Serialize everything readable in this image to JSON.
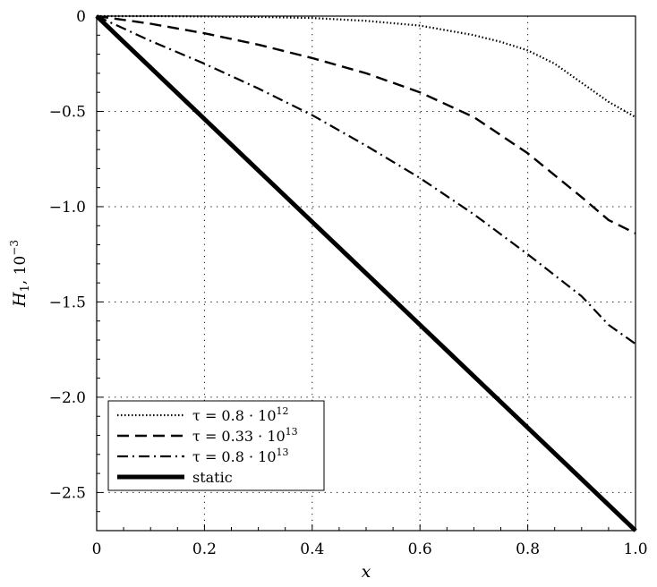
{
  "chart_data": {
    "type": "line",
    "xlabel": "x",
    "ylabel": "H_1, 10^-3",
    "ylabel_parts": {
      "sym": "H",
      "sub": "1",
      "rest": ", 10",
      "exp": "−3"
    },
    "xlim": [
      0,
      1.0
    ],
    "ylim": [
      -2.7,
      0
    ],
    "xticks": [
      0,
      0.2,
      0.4,
      0.6,
      0.8,
      1.0
    ],
    "xtick_labels": [
      "0",
      "0.2",
      "0.4",
      "0.6",
      "0.8",
      "1.0"
    ],
    "yticks": [
      0,
      -0.5,
      -1.0,
      -1.5,
      -2.0,
      -2.5
    ],
    "ytick_labels": [
      "0",
      "−0.5",
      "−1.0",
      "−1.5",
      "−2.0",
      "−2.5"
    ],
    "grid": true,
    "legend_position": "bottom-left",
    "series": [
      {
        "name": "τ = 0.8 · 10^12",
        "label_parts": {
          "pre": "τ = 0.8 · 10",
          "exp": "12"
        },
        "style": "dotted",
        "x": [
          0,
          0.1,
          0.2,
          0.3,
          0.4,
          0.5,
          0.6,
          0.7,
          0.75,
          0.8,
          0.85,
          0.9,
          0.95,
          1.0
        ],
        "y": [
          0,
          0,
          -0.002,
          -0.004,
          -0.01,
          -0.025,
          -0.05,
          -0.1,
          -0.135,
          -0.18,
          -0.25,
          -0.35,
          -0.45,
          -0.53
        ]
      },
      {
        "name": "τ = 0.33 · 10^13",
        "label_parts": {
          "pre": "τ = 0.33 · 10",
          "exp": "13"
        },
        "style": "dashed",
        "x": [
          0,
          0.1,
          0.2,
          0.3,
          0.4,
          0.5,
          0.6,
          0.7,
          0.8,
          0.9,
          0.95,
          1.0
        ],
        "y": [
          0,
          -0.04,
          -0.09,
          -0.15,
          -0.22,
          -0.3,
          -0.4,
          -0.53,
          -0.72,
          -0.95,
          -1.07,
          -1.14
        ]
      },
      {
        "name": "τ = 0.8 · 10^13",
        "label_parts": {
          "pre": "τ = 0.8 · 10",
          "exp": "13"
        },
        "style": "dashdot",
        "x": [
          0,
          0.1,
          0.2,
          0.3,
          0.4,
          0.5,
          0.6,
          0.7,
          0.8,
          0.9,
          0.95,
          1.0
        ],
        "y": [
          0,
          -0.13,
          -0.25,
          -0.38,
          -0.52,
          -0.68,
          -0.85,
          -1.04,
          -1.25,
          -1.47,
          -1.62,
          -1.72
        ]
      },
      {
        "name": "static",
        "label_parts": {
          "pre": "static",
          "exp": ""
        },
        "style": "thick",
        "x": [
          0,
          0.2,
          0.4,
          0.6,
          0.8,
          1.0
        ],
        "y": [
          0,
          -0.54,
          -1.08,
          -1.62,
          -2.16,
          -2.7
        ]
      }
    ]
  }
}
